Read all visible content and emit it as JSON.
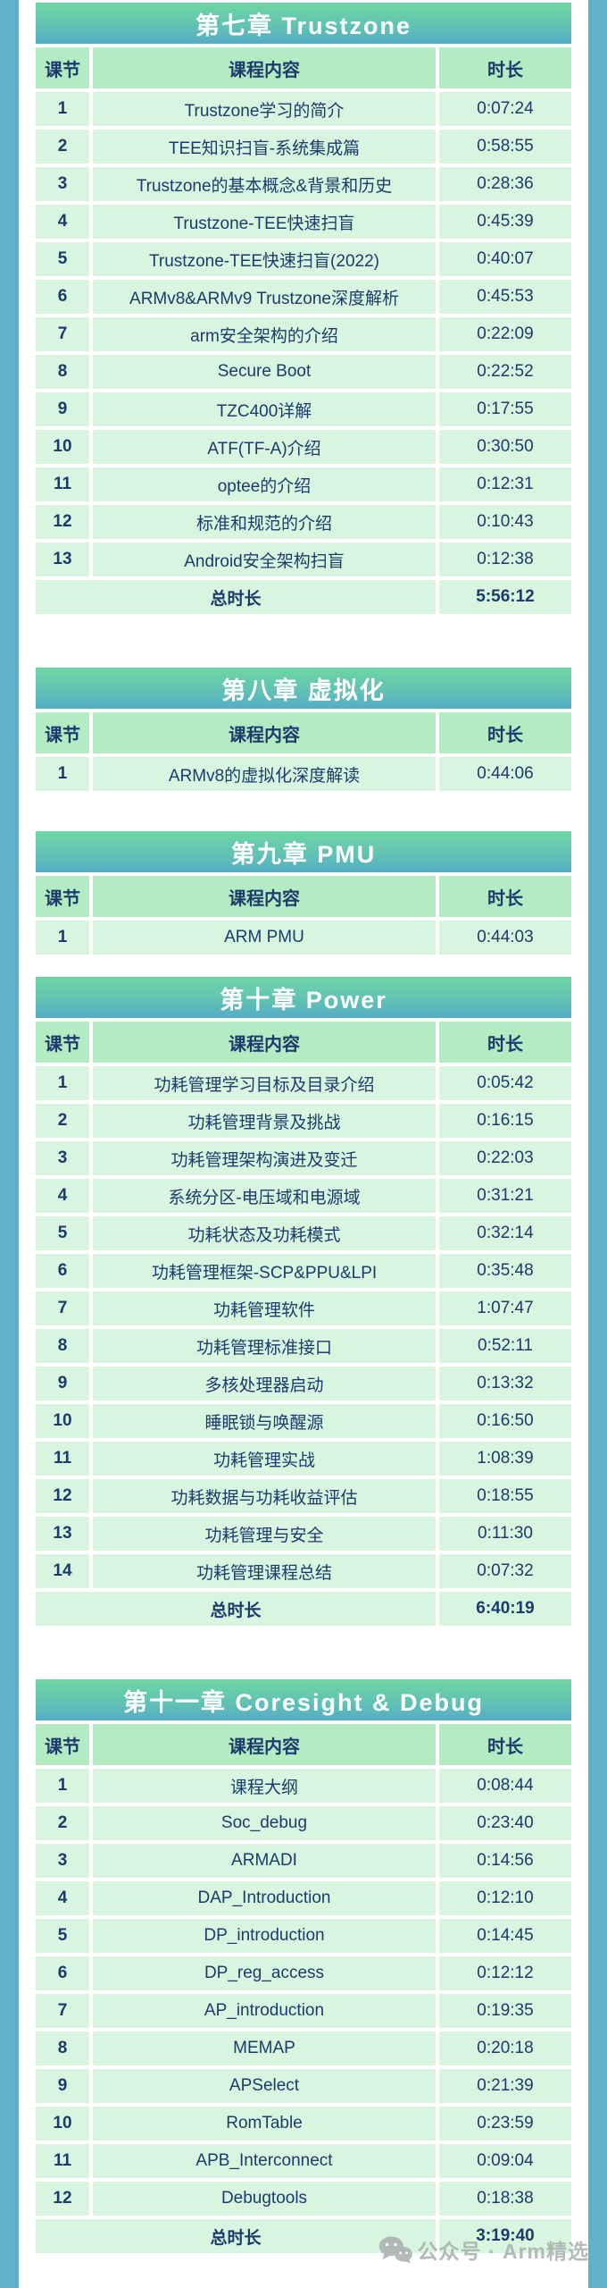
{
  "columns": {
    "lesson": "课节",
    "content": "课程内容",
    "duration": "时长"
  },
  "total_label": "总时长",
  "watermark": {
    "icon": "wechat-icon",
    "text": "公众号 · Arm精选"
  },
  "colors": {
    "side_strip": "#61b1c8",
    "banner_top": "#6ed7a3",
    "banner_bottom": "#55adc6",
    "header_cell": "#b4ebc3",
    "data_cell": "#d7f5df",
    "text": "#1d3a6d",
    "watermark_gray": "#a9aeae"
  },
  "chapters": [
    {
      "title": "第七章 Trustzone",
      "rows": [
        [
          "1",
          "Trustzone学习的简介",
          "0:07:24"
        ],
        [
          "2",
          "TEE知识扫盲-系统集成篇",
          "0:58:55"
        ],
        [
          "3",
          "Trustzone的基本概念&背景和历史",
          "0:28:36"
        ],
        [
          "4",
          "Trustzone-TEE快速扫盲",
          "0:45:39"
        ],
        [
          "5",
          "Trustzone-TEE快速扫盲(2022)",
          "0:40:07"
        ],
        [
          "6",
          "ARMv8&ARMv9 Trustzone深度解析",
          "0:45:53"
        ],
        [
          "7",
          "arm安全架构的介绍",
          "0:22:09"
        ],
        [
          "8",
          "Secure Boot",
          "0:22:52"
        ],
        [
          "9",
          "TZC400详解",
          "0:17:55"
        ],
        [
          "10",
          "ATF(TF-A)介绍",
          "0:30:50"
        ],
        [
          "11",
          "optee的介绍",
          "0:12:31"
        ],
        [
          "12",
          "标准和规范的介绍",
          "0:10:43"
        ],
        [
          "13",
          "Android安全架构扫盲",
          "0:12:38"
        ]
      ],
      "total": "5:56:12"
    },
    {
      "title": "第八章 虚拟化",
      "rows": [
        [
          "1",
          "ARMv8的虚拟化深度解读",
          "0:44:06"
        ]
      ],
      "total": null
    },
    {
      "title": "第九章 PMU",
      "rows": [
        [
          "1",
          "ARM PMU",
          "0:44:03"
        ]
      ],
      "total": null
    },
    {
      "title": "第十章 Power",
      "rows": [
        [
          "1",
          "功耗管理学习目标及目录介绍",
          "0:05:42"
        ],
        [
          "2",
          "功耗管理背景及挑战",
          "0:16:15"
        ],
        [
          "3",
          "功耗管理架构演进及变迁",
          "0:22:03"
        ],
        [
          "4",
          "系统分区-电压域和电源域",
          "0:31:21"
        ],
        [
          "5",
          "功耗状态及功耗模式",
          "0:32:14"
        ],
        [
          "6",
          "功耗管理框架-SCP&PPU&LPI",
          "0:35:48"
        ],
        [
          "7",
          "功耗管理软件",
          "1:07:47"
        ],
        [
          "8",
          "功耗管理标准接口",
          "0:52:11"
        ],
        [
          "9",
          "多核处理器启动",
          "0:13:32"
        ],
        [
          "10",
          "睡眠锁与唤醒源",
          "0:16:50"
        ],
        [
          "11",
          "功耗管理实战",
          "1:08:39"
        ],
        [
          "12",
          "功耗数据与功耗收益评估",
          "0:18:55"
        ],
        [
          "13",
          "功耗管理与安全",
          "0:11:30"
        ],
        [
          "14",
          "功耗管理课程总结",
          "0:07:32"
        ]
      ],
      "total": "6:40:19"
    },
    {
      "title": "第十一章 Coresight & Debug",
      "rows": [
        [
          "1",
          "课程大纲",
          "0:08:44"
        ],
        [
          "2",
          "Soc_debug",
          "0:23:40"
        ],
        [
          "3",
          "ARMADI",
          "0:14:56"
        ],
        [
          "4",
          "DAP_Introduction",
          "0:12:10"
        ],
        [
          "5",
          "DP_introduction",
          "0:14:45"
        ],
        [
          "6",
          "DP_reg_access",
          "0:12:12"
        ],
        [
          "7",
          "AP_introduction",
          "0:19:35"
        ],
        [
          "8",
          "MEMAP",
          "0:20:18"
        ],
        [
          "9",
          "APSelect",
          "0:21:39"
        ],
        [
          "10",
          "RomTable",
          "0:23:59"
        ],
        [
          "11",
          "APB_Interconnect",
          "0:09:04"
        ],
        [
          "12",
          "Debugtools",
          "0:18:38"
        ]
      ],
      "total": "3:19:40"
    }
  ]
}
